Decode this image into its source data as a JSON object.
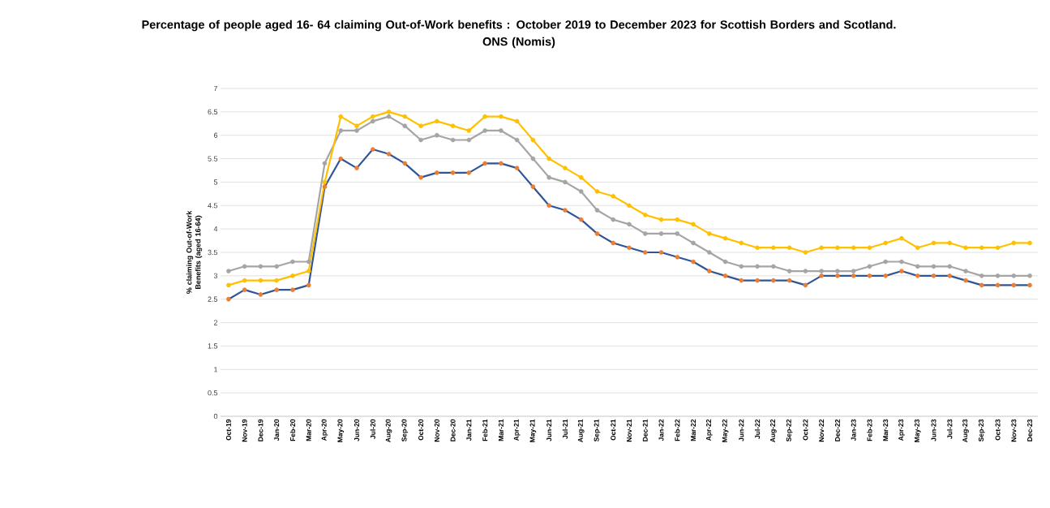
{
  "chart_data": {
    "type": "line",
    "title": "Percentage of people aged 16- 64 claiming Out-of-Work benefits : October 2019 to December 2023 for Scottish Borders and Scotland. ONS (Nomis)",
    "ylabel": "% claiming Out-of-Work Benefits (aged 16-64)",
    "categories": [
      "Oct-19",
      "Nov-19",
      "Dec-19",
      "Jan-20",
      "Feb-20",
      "Mar-20",
      "Apr-20",
      "May-20",
      "Jun-20",
      "Jul-20",
      "Aug-20",
      "Sep-20",
      "Oct-20",
      "Nov-20",
      "Dec-20",
      "Jan-21",
      "Feb-21",
      "Mar-21",
      "Apr-21",
      "May-21",
      "Jun-21",
      "Jul-21",
      "Aug-21",
      "Sep-21",
      "Oct-21",
      "Nov-21",
      "Dec-21",
      "Jan-22",
      "Feb-22",
      "Mar-22",
      "Apr-22",
      "May-22",
      "Jun-22",
      "Jul-22",
      "Aug-22",
      "Sep-22",
      "Oct-22",
      "Nov-22",
      "Dec-22",
      "Jan-23",
      "Feb-23",
      "Mar-23",
      "Apr-23",
      "May-23",
      "Jun-23",
      "Jul-23",
      "Aug-23",
      "Sep-23",
      "Oct-23",
      "Nov-23",
      "Dec-23"
    ],
    "series": [
      {
        "color": "#2f5597",
        "colors": [
          "#ed7d31",
          "#ed7d31",
          "#ed7d31",
          "#ed7d31",
          "#ed7d31",
          "#ed7d31",
          "#ed7d31",
          "#ed7d31",
          "#ed7d31",
          "#ed7d31",
          "#ed7d31",
          "#ed7d31",
          "#ed7d31",
          "#ed7d31",
          "#ed7d31",
          "#ed7d31",
          "#ed7d31",
          "#ed7d31",
          "#ed7d31",
          "#ed7d31",
          "#ed7d31",
          "#ed7d31",
          "#ed7d31",
          "#ed7d31",
          "#ed7d31",
          "#ed7d31",
          "#ed7d31",
          "#ed7d31",
          "#ed7d31",
          "#ed7d31",
          "#ed7d31",
          "#ed7d31",
          "#ed7d31",
          "#ed7d31",
          "#ed7d31",
          "#ed7d31",
          "#ed7d31",
          "#ed7d31",
          "#ed7d31",
          "#ed7d31",
          "#ed7d31",
          "#ed7d31",
          "#ed7d31",
          "#ed7d31",
          "#ed7d31",
          "#ed7d31",
          "#ed7d31",
          "#ed7d31",
          "#ed7d31",
          "#ed7d31",
          "#ed7d31"
        ],
        "values": [
          2.5,
          2.7,
          2.6,
          2.7,
          2.7,
          2.8,
          4.9,
          5.5,
          5.3,
          5.7,
          5.6,
          5.4,
          5.1,
          5.2,
          5.2,
          5.2,
          5.4,
          5.4,
          5.3,
          4.9,
          4.5,
          4.4,
          4.2,
          3.9,
          3.7,
          3.6,
          3.5,
          3.5,
          3.4,
          3.3,
          3.1,
          3.0,
          2.9,
          2.9,
          2.9,
          2.9,
          2.8,
          3.0,
          3.0,
          3.0,
          3.0,
          3.0,
          3.1,
          3.0,
          3.0,
          3.0,
          2.9,
          2.8,
          2.8,
          2.8,
          2.8
        ]
      },
      {
        "color": "#a5a5a5",
        "values": [
          3.1,
          3.2,
          3.2,
          3.2,
          3.3,
          3.3,
          5.4,
          6.1,
          6.1,
          6.3,
          6.4,
          6.2,
          5.9,
          6.0,
          5.9,
          5.9,
          6.1,
          6.1,
          5.9,
          5.5,
          5.1,
          5.0,
          4.8,
          4.4,
          4.2,
          4.1,
          3.9,
          3.9,
          3.9,
          3.7,
          3.5,
          3.3,
          3.2,
          3.2,
          3.2,
          3.1,
          3.1,
          3.1,
          3.1,
          3.1,
          3.2,
          3.3,
          3.3,
          3.2,
          3.2,
          3.2,
          3.1,
          3.0,
          3.0,
          3.0,
          3.0
        ]
      },
      {
        "color": "#ffc000",
        "values": [
          2.8,
          2.9,
          2.9,
          2.9,
          3.0,
          3.1,
          5.0,
          6.4,
          6.2,
          6.4,
          6.5,
          6.4,
          6.2,
          6.3,
          6.2,
          6.1,
          6.4,
          6.4,
          6.3,
          5.9,
          5.5,
          5.3,
          5.1,
          4.8,
          4.7,
          4.5,
          4.3,
          4.2,
          4.2,
          4.1,
          3.9,
          3.8,
          3.7,
          3.6,
          3.6,
          3.6,
          3.5,
          3.6,
          3.6,
          3.6,
          3.6,
          3.7,
          3.8,
          3.6,
          3.7,
          3.7,
          3.6,
          3.6,
          3.6,
          3.7,
          3.7
        ]
      }
    ],
    "ylim": [
      0,
      7
    ],
    "yticks": [
      0,
      0.5,
      1,
      1.5,
      2,
      2.5,
      3,
      3.5,
      4,
      4.5,
      5,
      5.5,
      6,
      6.5,
      7
    ],
    "grid": "y",
    "marker": "circle",
    "line_style": "solid"
  }
}
